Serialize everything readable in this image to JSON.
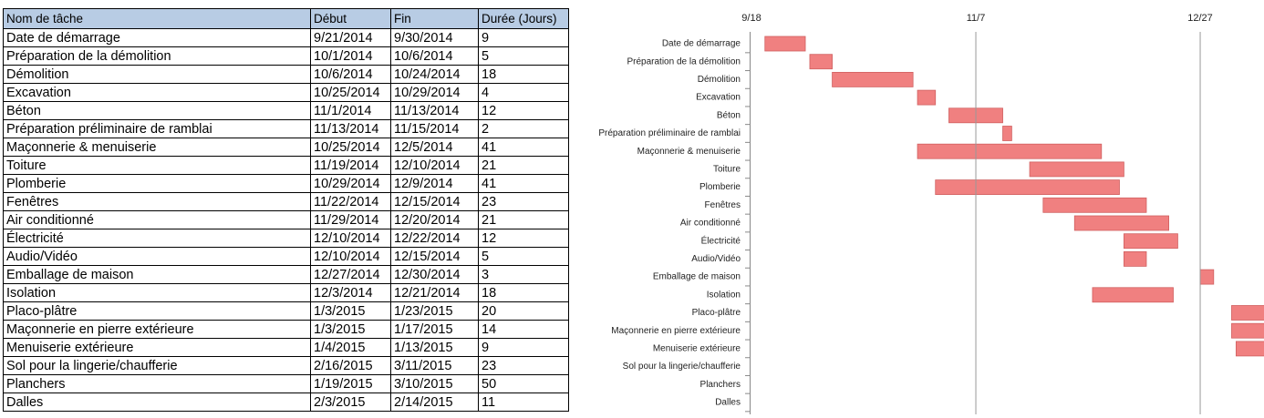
{
  "table": {
    "header": [
      "Nom de tâche",
      "Début",
      "Fin",
      "Durée (Jours)"
    ],
    "rows": [
      [
        "Date de démarrage",
        "9/21/2014",
        "9/30/2014",
        9
      ],
      [
        "Préparation de la démolition",
        "10/1/2014",
        "10/6/2014",
        5
      ],
      [
        "Démolition",
        "10/6/2014",
        "10/24/2014",
        18
      ],
      [
        "Excavation",
        "10/25/2014",
        "10/29/2014",
        4
      ],
      [
        "Béton",
        "11/1/2014",
        "11/13/2014",
        12
      ],
      [
        "Préparation préliminaire de ramblai",
        "11/13/2014",
        "11/15/2014",
        2
      ],
      [
        "Maçonnerie & menuiserie",
        "10/25/2014",
        "12/5/2014",
        41
      ],
      [
        "Toiture",
        "11/19/2014",
        "12/10/2014",
        21
      ],
      [
        "Plomberie",
        "10/29/2014",
        "12/9/2014",
        41
      ],
      [
        "Fenêtres",
        "11/22/2014",
        "12/15/2014",
        23
      ],
      [
        "Air conditionné",
        "11/29/2014",
        "12/20/2014",
        21
      ],
      [
        "Électricité",
        "12/10/2014",
        "12/22/2014",
        12
      ],
      [
        "Audio/Vidéo",
        "12/10/2014",
        "12/15/2014",
        5
      ],
      [
        "Emballage de maison",
        "12/27/2014",
        "12/30/2014",
        3
      ],
      [
        "Isolation",
        "12/3/2014",
        "12/21/2014",
        18
      ],
      [
        "Placo-plâtre",
        "1/3/2015",
        "1/23/2015",
        20
      ],
      [
        "Maçonnerie en pierre extérieure",
        "1/3/2015",
        "1/17/2015",
        14
      ],
      [
        "Menuiserie extérieure",
        "1/4/2015",
        "1/13/2015",
        9
      ],
      [
        "Sol pour la lingerie/chaufferie",
        "2/16/2015",
        "3/11/2015",
        23
      ],
      [
        "Planchers",
        "1/19/2015",
        "3/10/2015",
        50
      ],
      [
        "Dalles",
        "2/3/2015",
        "2/14/2015",
        11
      ]
    ]
  },
  "chart_data": {
    "type": "gantt",
    "categories": [
      "Date de démarrage",
      "Préparation de la démolition",
      "Démolition",
      "Excavation",
      "Béton",
      "Préparation préliminaire de ramblai",
      "Maçonnerie & menuiserie",
      "Toiture",
      "Plomberie",
      "Fenêtres",
      "Air conditionné",
      "Électricité",
      "Audio/Vidéo",
      "Emballage de maison",
      "Isolation",
      "Placo-plâtre",
      "Maçonnerie en pierre extérieure",
      "Menuiserie extérieure",
      "Sol pour la lingerie/chaufferie",
      "Planchers",
      "Dalles"
    ],
    "xlim": [
      "2014-09-18",
      "2015-01-09"
    ],
    "xticks": [
      {
        "value": "2014-09-18",
        "label": "9/18"
      },
      {
        "value": "2014-11-07",
        "label": "11/7"
      },
      {
        "value": "2014-12-27",
        "label": "12/27"
      }
    ],
    "color": "#f08080",
    "grid": true
  }
}
